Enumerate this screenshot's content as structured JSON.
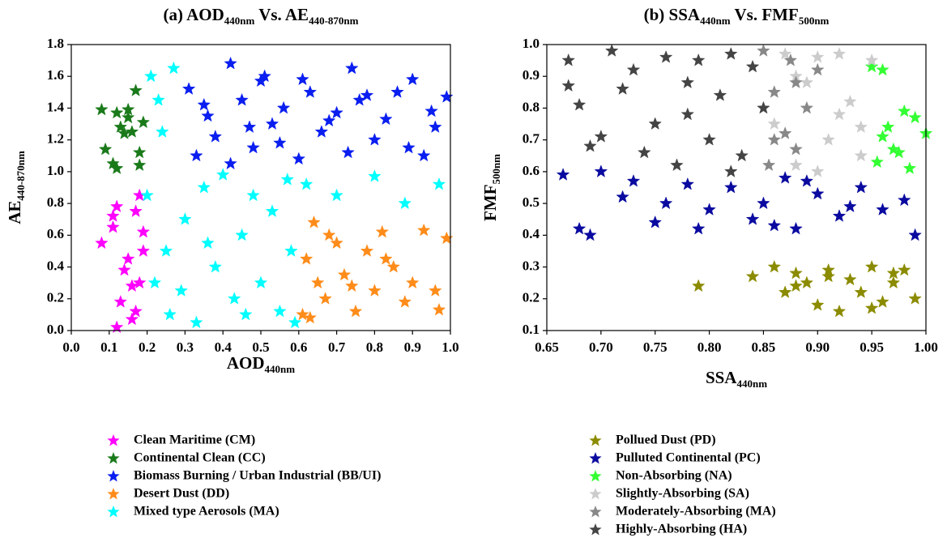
{
  "chart_data": [
    {
      "type": "scatter",
      "title": [
        {
          "text": "(a) AOD"
        },
        {
          "text": "440nm",
          "sub": true
        },
        {
          "text": " Vs. AE"
        },
        {
          "text": "440-870nm",
          "sub": true
        }
      ],
      "xlabel": [
        {
          "text": "AOD"
        },
        {
          "text": "440nm",
          "sub": true
        }
      ],
      "ylabel": [
        {
          "text": "AE"
        },
        {
          "text": "440-870nm",
          "sub": true
        }
      ],
      "xlim": [
        0,
        1
      ],
      "ylim": [
        0,
        1.8
      ],
      "xticks": [
        {
          "value": 0,
          "label": "0.0"
        },
        0.1,
        0.2,
        0.3,
        0.4,
        0.5,
        0.6,
        0.7,
        0.8,
        0.9,
        {
          "value": 1,
          "label": "1.0"
        }
      ],
      "yticks": [
        {
          "value": 0,
          "label": "0.0"
        },
        0.2,
        0.4,
        0.6,
        0.8,
        {
          "value": 1,
          "label": "1.0"
        },
        1.2,
        1.4,
        1.6,
        1.8
      ],
      "series": [
        {
          "name": "Clean Maritime (CM)",
          "color": "#ff00ff",
          "x": [
            0.08,
            0.11,
            0.12,
            0.13,
            0.15,
            0.16,
            0.17,
            0.18,
            0.19,
            0.18,
            0.12,
            0.14,
            0.17,
            0.19,
            0.11,
            0.16
          ],
          "values": [
            0.55,
            0.72,
            0.78,
            0.18,
            0.45,
            0.28,
            0.75,
            0.85,
            0.62,
            0.3,
            0.02,
            0.38,
            0.12,
            0.5,
            0.65,
            0.07
          ]
        },
        {
          "name": "Continental Clean (CC)",
          "color": "#1a7a1a",
          "x": [
            0.08,
            0.09,
            0.11,
            0.12,
            0.13,
            0.14,
            0.15,
            0.16,
            0.17,
            0.18,
            0.19,
            0.12,
            0.18,
            0.15
          ],
          "values": [
            1.39,
            1.14,
            1.05,
            1.37,
            1.28,
            1.24,
            1.39,
            1.25,
            1.51,
            1.12,
            1.31,
            1.02,
            1.04,
            1.34
          ]
        },
        {
          "name": "Biomass Burning / Urban Industrial (BB/UI)",
          "color": "#0a1ef0",
          "x": [
            0.31,
            0.33,
            0.36,
            0.38,
            0.42,
            0.45,
            0.48,
            0.5,
            0.53,
            0.56,
            0.6,
            0.63,
            0.66,
            0.7,
            0.73,
            0.76,
            0.8,
            0.83,
            0.86,
            0.9,
            0.93,
            0.96,
            0.99,
            0.42,
            0.47,
            0.51,
            0.61,
            0.74,
            0.89,
            0.35,
            0.55,
            0.68,
            0.78,
            0.95
          ],
          "values": [
            1.52,
            1.1,
            1.35,
            1.22,
            1.68,
            1.45,
            1.15,
            1.57,
            1.3,
            1.4,
            1.08,
            1.5,
            1.25,
            1.37,
            1.12,
            1.45,
            1.2,
            1.33,
            1.5,
            1.58,
            1.1,
            1.28,
            1.47,
            1.05,
            1.28,
            1.6,
            1.58,
            1.65,
            1.15,
            1.42,
            1.18,
            1.32,
            1.48,
            1.38
          ]
        },
        {
          "name": "Desert Dust (DD)",
          "color": "#ff8c1a",
          "x": [
            0.61,
            0.62,
            0.64,
            0.65,
            0.67,
            0.7,
            0.72,
            0.75,
            0.78,
            0.8,
            0.82,
            0.85,
            0.88,
            0.9,
            0.93,
            0.96,
            0.99,
            0.63,
            0.68,
            0.74,
            0.83,
            0.97
          ],
          "values": [
            0.1,
            0.45,
            0.68,
            0.3,
            0.2,
            0.55,
            0.35,
            0.12,
            0.5,
            0.25,
            0.62,
            0.4,
            0.18,
            0.3,
            0.63,
            0.25,
            0.58,
            0.08,
            0.6,
            0.28,
            0.45,
            0.13
          ]
        },
        {
          "name": "Mixed type Aerosols (MA)",
          "color": "#00ffff",
          "x": [
            0.2,
            0.21,
            0.22,
            0.24,
            0.25,
            0.27,
            0.26,
            0.3,
            0.33,
            0.35,
            0.38,
            0.4,
            0.43,
            0.45,
            0.48,
            0.5,
            0.53,
            0.55,
            0.58,
            0.59,
            0.62,
            0.7,
            0.8,
            0.88,
            0.97,
            0.23,
            0.36,
            0.46,
            0.57,
            0.29
          ],
          "values": [
            0.85,
            1.6,
            0.3,
            1.25,
            0.5,
            1.65,
            0.1,
            0.7,
            0.05,
            0.9,
            0.4,
            0.98,
            0.2,
            0.6,
            0.85,
            0.3,
            0.75,
            0.12,
            0.5,
            0.05,
            0.92,
            0.85,
            0.97,
            0.8,
            0.92,
            1.45,
            0.55,
            0.1,
            0.95,
            0.25
          ]
        }
      ]
    },
    {
      "type": "scatter",
      "title": [
        {
          "text": "(b) SSA"
        },
        {
          "text": "440nm",
          "sub": true
        },
        {
          "text": " Vs. FMF"
        },
        {
          "text": "500nm",
          "sub": true
        }
      ],
      "xlabel": [
        {
          "text": "SSA"
        },
        {
          "text": "440nm",
          "sub": true
        }
      ],
      "ylabel": [
        {
          "text": "FMF"
        },
        {
          "text": "500nm",
          "sub": true
        }
      ],
      "xlim": [
        0.65,
        1
      ],
      "ylim": [
        0.1,
        1
      ],
      "xticks": [
        0.65,
        {
          "value": 0.7,
          "label": "0.70"
        },
        0.75,
        {
          "value": 0.8,
          "label": "0.80"
        },
        0.85,
        {
          "value": 0.9,
          "label": "0.90"
        },
        0.95,
        {
          "value": 1,
          "label": "1.00"
        }
      ],
      "yticks": [
        0.1,
        0.2,
        0.3,
        0.4,
        0.5,
        0.6,
        0.7,
        0.8,
        0.9,
        {
          "value": 1,
          "label": "1.0"
        }
      ],
      "series": [
        {
          "name": "Pollued Dust (PD)",
          "color": "#8b8b00",
          "x": [
            0.79,
            0.84,
            0.86,
            0.87,
            0.88,
            0.89,
            0.9,
            0.91,
            0.92,
            0.93,
            0.94,
            0.95,
            0.96,
            0.97,
            0.98,
            0.99,
            0.91,
            0.95,
            0.88,
            0.97
          ],
          "values": [
            0.24,
            0.27,
            0.3,
            0.22,
            0.28,
            0.25,
            0.18,
            0.29,
            0.16,
            0.26,
            0.22,
            0.3,
            0.19,
            0.25,
            0.29,
            0.2,
            0.27,
            0.17,
            0.24,
            0.28
          ]
        },
        {
          "name": "Pulluted Continental (PC)",
          "color": "#0a0aa0",
          "x": [
            0.665,
            0.68,
            0.69,
            0.7,
            0.72,
            0.73,
            0.75,
            0.76,
            0.78,
            0.79,
            0.8,
            0.82,
            0.84,
            0.85,
            0.87,
            0.88,
            0.9,
            0.92,
            0.94,
            0.96,
            0.98,
            0.99,
            0.86,
            0.89,
            0.93
          ],
          "values": [
            0.59,
            0.42,
            0.4,
            0.6,
            0.52,
            0.57,
            0.44,
            0.5,
            0.56,
            0.42,
            0.48,
            0.55,
            0.45,
            0.5,
            0.58,
            0.42,
            0.53,
            0.46,
            0.55,
            0.48,
            0.51,
            0.4,
            0.43,
            0.57,
            0.49
          ]
        },
        {
          "name": "Non-Absorbing (NA)",
          "color": "#33ff33",
          "x": [
            0.95,
            0.96,
            0.965,
            0.97,
            0.975,
            0.98,
            0.99,
            1.0,
            0.96,
            0.985,
            0.955
          ],
          "values": [
            0.93,
            0.92,
            0.74,
            0.67,
            0.66,
            0.79,
            0.77,
            0.72,
            0.71,
            0.61,
            0.63
          ]
        },
        {
          "name": "Slightly-Absorbing (SA)",
          "color": "#cccccc",
          "x": [
            0.86,
            0.87,
            0.88,
            0.89,
            0.9,
            0.91,
            0.92,
            0.93,
            0.94,
            0.95,
            0.9,
            0.92,
            0.88,
            0.94
          ],
          "values": [
            0.75,
            0.97,
            0.62,
            0.88,
            0.96,
            0.7,
            0.97,
            0.82,
            0.65,
            0.95,
            0.6,
            0.78,
            0.9,
            0.74
          ]
        },
        {
          "name": "Moderately-Absorbing (MA)",
          "color": "#888888",
          "x": [
            0.85,
            0.855,
            0.86,
            0.87,
            0.875,
            0.88,
            0.89,
            0.9,
            0.86,
            0.88
          ],
          "values": [
            0.98,
            0.62,
            0.85,
            0.72,
            0.95,
            0.67,
            0.8,
            0.92,
            0.7,
            0.88
          ]
        },
        {
          "name": "Highly-Absorbing (HA)",
          "color": "#444444",
          "x": [
            0.67,
            0.67,
            0.68,
            0.69,
            0.7,
            0.71,
            0.72,
            0.73,
            0.75,
            0.76,
            0.77,
            0.78,
            0.79,
            0.8,
            0.81,
            0.82,
            0.83,
            0.84,
            0.85,
            0.74,
            0.78,
            0.82
          ],
          "values": [
            0.95,
            0.87,
            0.81,
            0.68,
            0.71,
            0.98,
            0.86,
            0.92,
            0.75,
            0.96,
            0.62,
            0.88,
            0.95,
            0.7,
            0.84,
            0.97,
            0.65,
            0.93,
            0.8,
            0.66,
            0.78,
            0.6
          ]
        }
      ]
    }
  ]
}
